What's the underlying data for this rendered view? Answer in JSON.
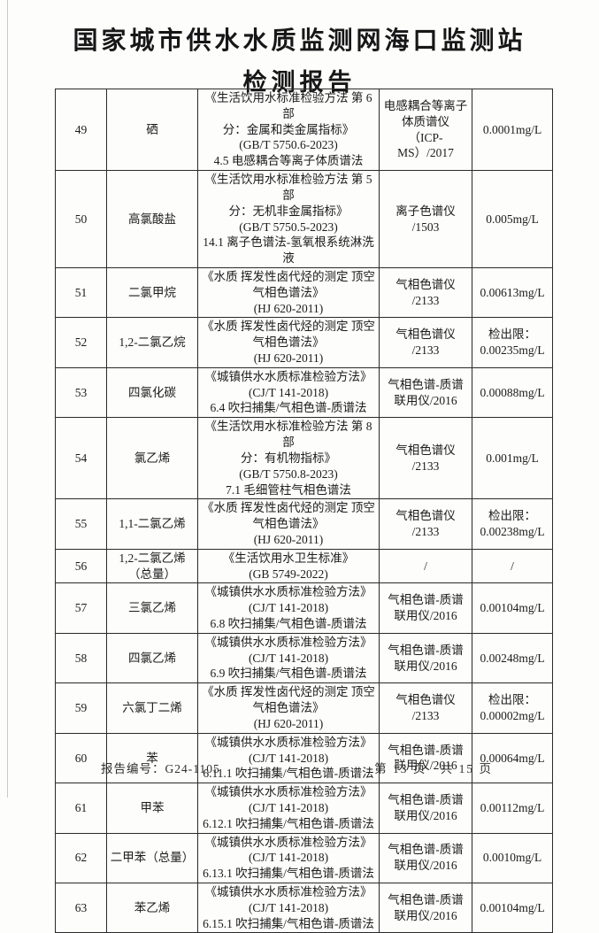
{
  "title": "国家城市供水水质监测网海口监测站",
  "subtitle": "检测报告",
  "rows": [
    {
      "no": "49",
      "name": "硒",
      "method": "《生活饮用水标准检验方法 第 6 部\n分：金属和类金属指标》\n(GB/T 5750.6-2023)\n4.5 电感耦合等离子体质谱法",
      "instrument": "电感耦合等离子\n体质谱仪\n（ICP-MS）/2017",
      "limit": "0.0001mg/L"
    },
    {
      "no": "50",
      "name": "高氯酸盐",
      "method": "《生活饮用水标准检验方法 第 5 部\n分：无机非金属指标》\n(GB/T 5750.5-2023)\n14.1 离子色谱法-氢氧根系统淋洗液",
      "instrument": "离子色谱仪\n/1503",
      "limit": "0.005mg/L"
    },
    {
      "no": "51",
      "name": "二氯甲烷",
      "method": "《水质 挥发性卤代烃的测定 顶空\n气相色谱法》\n(HJ 620-2011)",
      "instrument": "气相色谱仪\n/2133",
      "limit": "0.00613mg/L"
    },
    {
      "no": "52",
      "name": "1,2-二氯乙烷",
      "method": "《水质 挥发性卤代烃的测定 顶空\n气相色谱法》\n(HJ 620-2011)",
      "instrument": "气相色谱仪\n/2133",
      "limit": "检出限：\n0.00235mg/L"
    },
    {
      "no": "53",
      "name": "四氯化碳",
      "method": "《城镇供水水质标准检验方法》\n(CJ/T 141-2018)\n6.4 吹扫捕集/气相色谱-质谱法",
      "instrument": "气相色谱-质谱\n联用仪/2016",
      "limit": "0.00088mg/L"
    },
    {
      "no": "54",
      "name": "氯乙烯",
      "method": "《生活饮用水标准检验方法 第 8 部\n分：有机物指标》\n(GB/T 5750.8-2023)\n7.1 毛细管柱气相色谱法",
      "instrument": "气相色谱仪\n/2133",
      "limit": "0.001mg/L"
    },
    {
      "no": "55",
      "name": "1,1-二氯乙烯",
      "method": "《水质 挥发性卤代烃的测定 顶空\n气相色谱法》\n(HJ 620-2011)",
      "instrument": "气相色谱仪\n/2133",
      "limit": "检出限：\n0.00238mg/L"
    },
    {
      "no": "56",
      "name": "1,2-二氯乙烯\n（总量）",
      "method": "《生活饮用水卫生标准》\n(GB 5749-2022)",
      "instrument": "/",
      "limit": "/"
    },
    {
      "no": "57",
      "name": "三氯乙烯",
      "method": "《城镇供水水质标准检验方法》\n(CJ/T 141-2018)\n6.8 吹扫捕集/气相色谱-质谱法",
      "instrument": "气相色谱-质谱\n联用仪/2016",
      "limit": "0.00104mg/L"
    },
    {
      "no": "58",
      "name": "四氯乙烯",
      "method": "《城镇供水水质标准检验方法》\n(CJ/T 141-2018)\n6.9 吹扫捕集/气相色谱-质谱法",
      "instrument": "气相色谱-质谱\n联用仪/2016",
      "limit": "0.00248mg/L"
    },
    {
      "no": "59",
      "name": "六氯丁二烯",
      "method": "《水质 挥发性卤代烃的测定 顶空\n气相色谱法》\n(HJ 620-2011)",
      "instrument": "气相色谱仪\n/2133",
      "limit": "检出限：\n0.00002mg/L"
    },
    {
      "no": "60",
      "name": "苯",
      "method": "《城镇供水水质标准检验方法》\n(CJ/T 141-2018)\n6.11.1 吹扫捕集/气相色谱-质谱法",
      "instrument": "气相色谱-质谱\n联用仪/2016",
      "limit": "0.00064mg/L"
    },
    {
      "no": "61",
      "name": "甲苯",
      "method": "《城镇供水水质标准检验方法》\n(CJ/T 141-2018)\n6.12.1 吹扫捕集/气相色谱-质谱法",
      "instrument": "气相色谱-质谱\n联用仪/2016",
      "limit": "0.00112mg/L"
    },
    {
      "no": "62",
      "name": "二甲苯（总量）",
      "method": "《城镇供水水质标准检验方法》\n(CJ/T 141-2018)\n6.13.1 吹扫捕集/气相色谱-质谱法",
      "instrument": "气相色谱-质谱\n联用仪/2016",
      "limit": "0.0010mg/L"
    },
    {
      "no": "63",
      "name": "苯乙烯",
      "method": "《城镇供水水质标准检验方法》\n(CJ/T 141-2018)\n6.15.1 吹扫捕集/气相色谱-质谱法",
      "instrument": "气相色谱-质谱\n联用仪/2016",
      "limit": "0.00104mg/L"
    }
  ],
  "footer": {
    "report_no": "报告编号：G24-1105",
    "page_current": "第 13 页",
    "page_total": "共 15 页"
  }
}
